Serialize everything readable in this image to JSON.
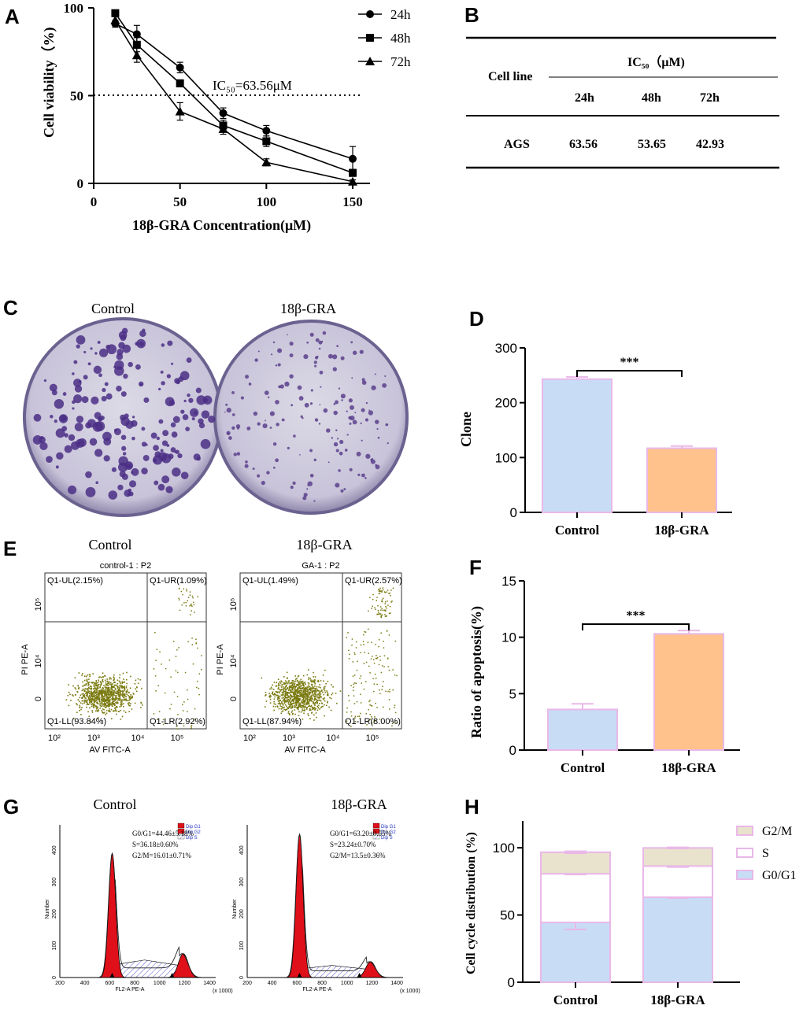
{
  "colors": {
    "blue": "#c8dcf6",
    "orange": "#ffc28c",
    "edge": "#e9b8e8",
    "beige": "#e9e2cc",
    "olive": "#7a7a10",
    "red": "#e0101a",
    "purple": "#5a3f8c",
    "plate": "#c9c4d8"
  },
  "panelA": {
    "letter": "A",
    "ylabel": "Cell viability（%)",
    "xlabel": "18β-GRA  Concentration(μM)",
    "ic50_label": "IC₅₀=63.56μM",
    "chart_data": {
      "type": "line",
      "x": [
        12.5,
        25,
        50,
        75,
        100,
        150
      ],
      "xticks": [
        0,
        50,
        100,
        150
      ],
      "yticks": [
        0,
        50,
        100
      ],
      "xlim": [
        0,
        160
      ],
      "ylim": [
        0,
        100
      ],
      "reference_line": 50,
      "series": [
        {
          "name": "24h",
          "marker": "circle",
          "values": [
            91,
            85,
            66,
            40,
            30,
            14
          ],
          "err": [
            2,
            5,
            3,
            3,
            3,
            7
          ]
        },
        {
          "name": "48h",
          "marker": "square",
          "values": [
            97,
            79,
            57,
            33,
            24,
            6
          ],
          "err": [
            1,
            4,
            2,
            3,
            3,
            2
          ]
        },
        {
          "name": "72h",
          "marker": "triangle",
          "values": [
            93,
            73,
            41,
            31,
            12,
            1
          ],
          "err": [
            2,
            4,
            5,
            3,
            2,
            1
          ]
        }
      ]
    }
  },
  "panelB": {
    "letter": "B",
    "row_header": "Cell line",
    "group_header": "IC₅₀（μM)",
    "columns": [
      "24h",
      "48h",
      "72h"
    ],
    "rows": [
      {
        "name": "AGS",
        "values": [
          "63.56",
          "53.65",
          "42.93"
        ]
      }
    ]
  },
  "panelC": {
    "letter": "C",
    "labels": [
      "Control",
      "18β-GRA"
    ]
  },
  "panelD": {
    "letter": "D",
    "ylabel": "Clone",
    "signif": "***",
    "chart_data": {
      "type": "bar",
      "categories": [
        "Control",
        "18β-GRA"
      ],
      "values": [
        243,
        117
      ],
      "err": [
        4,
        4
      ],
      "ylim": [
        0,
        300
      ],
      "yticks": [
        0,
        100,
        200,
        300
      ]
    }
  },
  "panelE": {
    "letter": "E",
    "plots": [
      {
        "label": "Control",
        "title": "control-1 : P2",
        "ul": "Q1-UL(2.15%)",
        "ur": "Q1-UR(1.09%)",
        "ll": "Q1-LL(93.84%)",
        "lr": "Q1-LR(2.92%)"
      },
      {
        "label": "18β-GRA",
        "title": "GA-1 : P2",
        "ul": "Q1-UL(1.49%)",
        "ur": "Q1-UR(2.57%)",
        "ll": "Q1-LL(87.94%)",
        "lr": "Q1-LR(8.00%)"
      }
    ],
    "xaxis": "AV FITC-A",
    "yaxis": "PI PE-A",
    "xticks": [
      "10²",
      "10³",
      "10⁴",
      "10⁵"
    ],
    "yticks": [
      "0",
      "10⁴",
      "10⁵"
    ]
  },
  "panelF": {
    "letter": "F",
    "ylabel": "Ratio of apoptosis(%)",
    "signif": "***",
    "chart_data": {
      "type": "bar",
      "categories": [
        "Control",
        "18β-GRA"
      ],
      "values": [
        3.6,
        10.3
      ],
      "err": [
        0.5,
        0.3
      ],
      "ylim": [
        0,
        15
      ],
      "yticks": [
        0,
        5,
        10,
        15
      ]
    }
  },
  "panelG": {
    "letter": "G",
    "plots": [
      {
        "label": "Control",
        "stats": [
          "G0/G1=44.46±5.18%",
          "S=36.18±0.60%",
          "G2/M=16.01±0.71%"
        ],
        "peak1": 390,
        "s_level": 55,
        "peak2": 75
      },
      {
        "label": "18β-GRA",
        "stats": [
          "G0/G1=63.20±0.55%",
          "S=23.24±0.70%",
          "G2/M=13.5±0.36%"
        ],
        "peak1": 450,
        "s_level": 38,
        "peak2": 50
      }
    ],
    "legend": [
      "Dip G1",
      "Dip G2",
      "Dip S"
    ],
    "ylabel": "Number",
    "xlabel": "FL2-A PE-A",
    "xunit": "(x 1000)",
    "xticks": [
      "200",
      "400",
      "600",
      "800",
      "1000",
      "1200",
      "1400"
    ],
    "yticks": [
      "0",
      "100",
      "200",
      "300",
      "400"
    ]
  },
  "panelH": {
    "letter": "H",
    "ylabel": "Cell cycle distribution (%)",
    "chart_data": {
      "type": "bar",
      "stacked": true,
      "categories": [
        "Control",
        "18β-GRA"
      ],
      "series": [
        {
          "name": "G0/G1",
          "values": [
            44.5,
            63.2
          ],
          "err": [
            5.2,
            0.6
          ]
        },
        {
          "name": "S",
          "values": [
            36.2,
            23.2
          ],
          "err": [
            0.6,
            0.7
          ]
        },
        {
          "name": "G2/M",
          "values": [
            16.0,
            13.5
          ],
          "err": [
            0.7,
            0.4
          ]
        }
      ],
      "ylim": [
        0,
        120
      ],
      "yticks": [
        0,
        50,
        100
      ]
    }
  }
}
